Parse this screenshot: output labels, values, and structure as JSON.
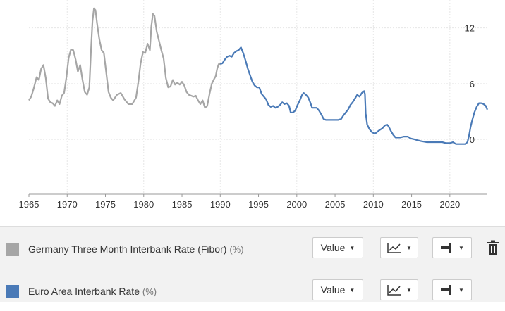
{
  "chart_data": {
    "type": "line",
    "x_ticks": [
      1965,
      1970,
      1975,
      1980,
      1985,
      1990,
      1995,
      2000,
      2005,
      2010,
      2015,
      2020
    ],
    "y_ticks": [
      0,
      6,
      12
    ],
    "xlim": [
      1965,
      2024.9
    ],
    "ylim": [
      -5.9,
      15
    ],
    "y_axis_side": "right",
    "grid": true,
    "series": [
      {
        "name": "Germany Three Month Interbank Rate (Fibor)",
        "unit": "(%)",
        "color": "#a6a6a6",
        "points": [
          [
            1965.0,
            4.2
          ],
          [
            1965.3,
            4.6
          ],
          [
            1965.6,
            5.4
          ],
          [
            1966.0,
            6.7
          ],
          [
            1966.3,
            6.4
          ],
          [
            1966.6,
            7.6
          ],
          [
            1966.9,
            8.0
          ],
          [
            1967.2,
            6.6
          ],
          [
            1967.5,
            4.4
          ],
          [
            1967.8,
            4.0
          ],
          [
            1968.1,
            3.9
          ],
          [
            1968.4,
            3.6
          ],
          [
            1968.7,
            4.2
          ],
          [
            1969.0,
            3.8
          ],
          [
            1969.3,
            4.7
          ],
          [
            1969.6,
            5.0
          ],
          [
            1969.9,
            6.7
          ],
          [
            1970.2,
            8.8
          ],
          [
            1970.5,
            9.7
          ],
          [
            1970.8,
            9.6
          ],
          [
            1971.1,
            8.6
          ],
          [
            1971.4,
            7.3
          ],
          [
            1971.7,
            8.0
          ],
          [
            1972.0,
            6.4
          ],
          [
            1972.3,
            5.1
          ],
          [
            1972.6,
            4.8
          ],
          [
            1972.9,
            5.6
          ],
          [
            1973.1,
            9.4
          ],
          [
            1973.3,
            12.7
          ],
          [
            1973.5,
            14.1
          ],
          [
            1973.7,
            13.9
          ],
          [
            1973.9,
            12.5
          ],
          [
            1974.2,
            10.8
          ],
          [
            1974.5,
            9.6
          ],
          [
            1974.8,
            9.3
          ],
          [
            1975.1,
            7.2
          ],
          [
            1975.4,
            5.1
          ],
          [
            1975.7,
            4.5
          ],
          [
            1976.0,
            4.2
          ],
          [
            1976.5,
            4.8
          ],
          [
            1977.0,
            5.0
          ],
          [
            1977.5,
            4.3
          ],
          [
            1978.0,
            3.8
          ],
          [
            1978.5,
            3.8
          ],
          [
            1979.0,
            4.5
          ],
          [
            1979.3,
            6.2
          ],
          [
            1979.6,
            8.2
          ],
          [
            1979.9,
            9.4
          ],
          [
            1980.2,
            9.3
          ],
          [
            1980.5,
            10.3
          ],
          [
            1980.8,
            9.6
          ],
          [
            1981.0,
            12.2
          ],
          [
            1981.2,
            13.5
          ],
          [
            1981.4,
            13.3
          ],
          [
            1981.7,
            11.6
          ],
          [
            1982.0,
            10.6
          ],
          [
            1982.3,
            9.6
          ],
          [
            1982.6,
            8.7
          ],
          [
            1982.9,
            6.6
          ],
          [
            1983.2,
            5.6
          ],
          [
            1983.5,
            5.7
          ],
          [
            1983.8,
            6.4
          ],
          [
            1984.1,
            5.9
          ],
          [
            1984.4,
            6.1
          ],
          [
            1984.7,
            5.9
          ],
          [
            1985.0,
            6.2
          ],
          [
            1985.3,
            5.8
          ],
          [
            1985.6,
            5.1
          ],
          [
            1985.9,
            4.8
          ],
          [
            1986.2,
            4.7
          ],
          [
            1986.5,
            4.6
          ],
          [
            1986.8,
            4.7
          ],
          [
            1987.1,
            4.2
          ],
          [
            1987.4,
            3.8
          ],
          [
            1987.7,
            4.2
          ],
          [
            1988.0,
            3.4
          ],
          [
            1988.3,
            3.6
          ],
          [
            1988.6,
            4.9
          ],
          [
            1988.9,
            6.0
          ],
          [
            1989.2,
            6.5
          ],
          [
            1989.4,
            6.8
          ],
          [
            1989.6,
            7.6
          ],
          [
            1989.8,
            8.1
          ],
          [
            1990.0,
            8.1
          ]
        ]
      },
      {
        "name": "Euro Area Interbank Rate",
        "unit": "(%)",
        "color": "#4a7ab7",
        "points": [
          [
            1990.0,
            8.1
          ],
          [
            1990.3,
            8.2
          ],
          [
            1990.6,
            8.6
          ],
          [
            1990.9,
            8.9
          ],
          [
            1991.2,
            9.0
          ],
          [
            1991.5,
            8.9
          ],
          [
            1991.8,
            9.3
          ],
          [
            1992.1,
            9.5
          ],
          [
            1992.4,
            9.6
          ],
          [
            1992.7,
            9.9
          ],
          [
            1993.0,
            9.3
          ],
          [
            1993.3,
            8.5
          ],
          [
            1993.6,
            7.6
          ],
          [
            1993.9,
            6.9
          ],
          [
            1994.2,
            6.2
          ],
          [
            1994.5,
            5.8
          ],
          [
            1994.8,
            5.6
          ],
          [
            1995.1,
            5.6
          ],
          [
            1995.4,
            4.9
          ],
          [
            1995.7,
            4.6
          ],
          [
            1996.0,
            4.3
          ],
          [
            1996.3,
            3.7
          ],
          [
            1996.6,
            3.5
          ],
          [
            1996.9,
            3.6
          ],
          [
            1997.2,
            3.4
          ],
          [
            1997.5,
            3.5
          ],
          [
            1997.8,
            3.7
          ],
          [
            1998.1,
            4.0
          ],
          [
            1998.4,
            3.8
          ],
          [
            1998.7,
            3.9
          ],
          [
            1999.0,
            3.6
          ],
          [
            1999.2,
            2.9
          ],
          [
            1999.5,
            2.9
          ],
          [
            1999.8,
            3.1
          ],
          [
            2000.1,
            3.7
          ],
          [
            2000.4,
            4.2
          ],
          [
            2000.7,
            4.8
          ],
          [
            2000.9,
            5.0
          ],
          [
            2001.2,
            4.8
          ],
          [
            2001.5,
            4.5
          ],
          [
            2001.8,
            3.9
          ],
          [
            2002.0,
            3.4
          ],
          [
            2002.3,
            3.4
          ],
          [
            2002.6,
            3.4
          ],
          [
            2002.9,
            3.1
          ],
          [
            2003.2,
            2.7
          ],
          [
            2003.5,
            2.2
          ],
          [
            2003.8,
            2.1
          ],
          [
            2004.2,
            2.1
          ],
          [
            2004.6,
            2.1
          ],
          [
            2005.0,
            2.1
          ],
          [
            2005.4,
            2.1
          ],
          [
            2005.8,
            2.2
          ],
          [
            2006.1,
            2.6
          ],
          [
            2006.4,
            2.9
          ],
          [
            2006.7,
            3.2
          ],
          [
            2007.0,
            3.7
          ],
          [
            2007.3,
            4.0
          ],
          [
            2007.6,
            4.4
          ],
          [
            2007.9,
            4.8
          ],
          [
            2008.2,
            4.6
          ],
          [
            2008.5,
            5.0
          ],
          [
            2008.8,
            5.2
          ],
          [
            2008.9,
            4.9
          ],
          [
            2009.0,
            2.8
          ],
          [
            2009.2,
            1.6
          ],
          [
            2009.5,
            1.1
          ],
          [
            2009.8,
            0.8
          ],
          [
            2010.2,
            0.6
          ],
          [
            2010.5,
            0.8
          ],
          [
            2010.8,
            1.0
          ],
          [
            2011.2,
            1.2
          ],
          [
            2011.5,
            1.5
          ],
          [
            2011.8,
            1.6
          ],
          [
            2012.0,
            1.4
          ],
          [
            2012.3,
            0.9
          ],
          [
            2012.6,
            0.5
          ],
          [
            2012.9,
            0.2
          ],
          [
            2013.5,
            0.2
          ],
          [
            2014.0,
            0.3
          ],
          [
            2014.5,
            0.3
          ],
          [
            2014.9,
            0.1
          ],
          [
            2015.4,
            0.0
          ],
          [
            2015.8,
            -0.1
          ],
          [
            2016.3,
            -0.2
          ],
          [
            2017.0,
            -0.3
          ],
          [
            2018.0,
            -0.3
          ],
          [
            2019.0,
            -0.3
          ],
          [
            2019.5,
            -0.4
          ],
          [
            2020.0,
            -0.4
          ],
          [
            2020.4,
            -0.3
          ],
          [
            2020.8,
            -0.5
          ],
          [
            2021.5,
            -0.5
          ],
          [
            2022.0,
            -0.5
          ],
          [
            2022.3,
            -0.3
          ],
          [
            2022.5,
            0.4
          ],
          [
            2022.7,
            1.3
          ],
          [
            2022.9,
            2.0
          ],
          [
            2023.2,
            2.9
          ],
          [
            2023.5,
            3.5
          ],
          [
            2023.8,
            3.9
          ],
          [
            2024.1,
            3.9
          ],
          [
            2024.4,
            3.8
          ],
          [
            2024.7,
            3.6
          ],
          [
            2024.9,
            3.2
          ]
        ]
      }
    ]
  },
  "legend": {
    "series1": {
      "label": "Germany Three Month Interbank Rate (Fibor)",
      "unit": "(%)",
      "value_label": "Value"
    },
    "series2": {
      "label": "Euro Area Interbank Rate",
      "unit": "(%)",
      "value_label": "Value"
    }
  },
  "icons": {
    "chart_type": "line-chart-icon",
    "axis": "axis-side-icon",
    "delete": "trash-icon",
    "dropdown": "caret-down-icon"
  }
}
